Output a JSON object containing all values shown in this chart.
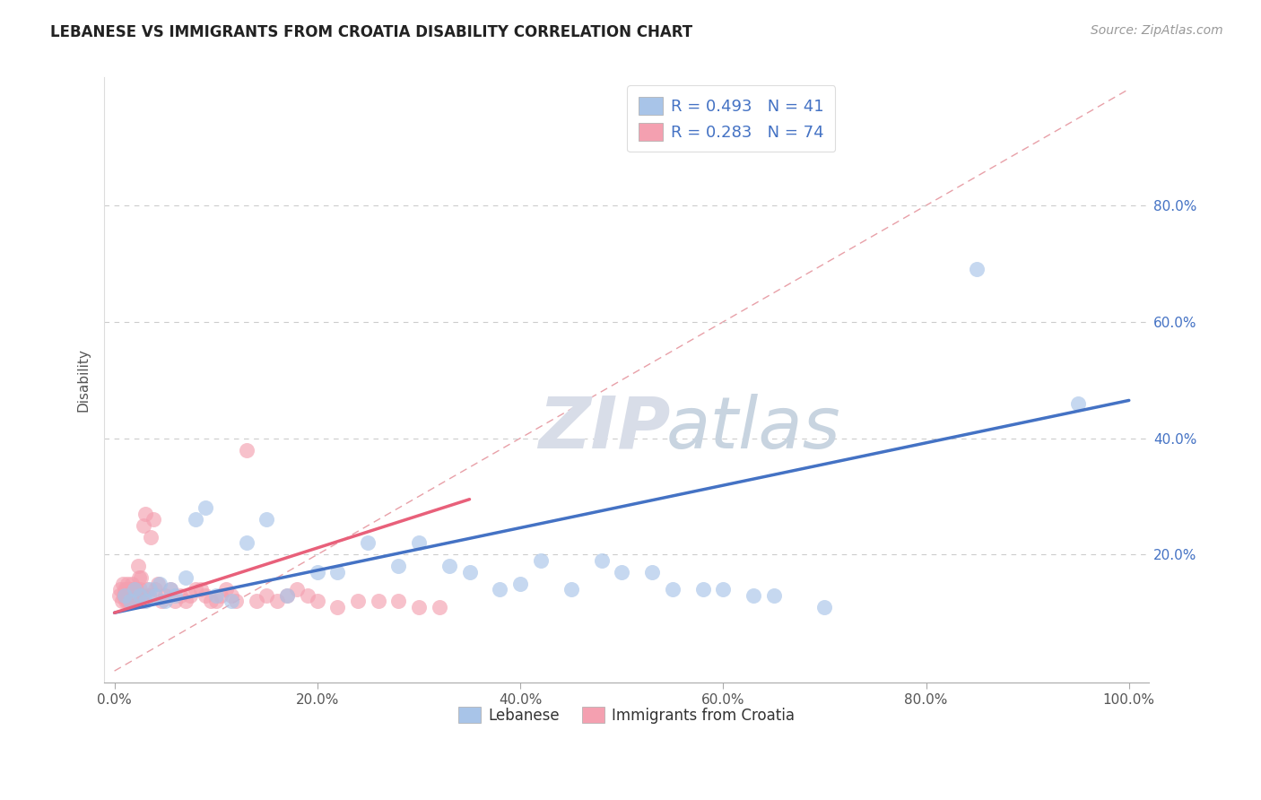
{
  "title": "LEBANESE VS IMMIGRANTS FROM CROATIA DISABILITY CORRELATION CHART",
  "source_text": "Source: ZipAtlas.com",
  "ylabel": "Disability",
  "legend_label_1": "Lebanese",
  "legend_label_2": "Immigrants from Croatia",
  "watermark_zip": "ZIP",
  "watermark_atlas": "atlas",
  "r1": 0.493,
  "n1": 41,
  "r2": 0.283,
  "n2": 74,
  "color1": "#a8c4e8",
  "color2": "#f4a0b0",
  "line_color1": "#4472c4",
  "line_color2": "#e8607a",
  "diag_color": "#e8a0a8",
  "grid_color": "#cccccc",
  "background_color": "#ffffff",
  "right_tick_color": "#4472c4",
  "leb_x": [
    0.01,
    0.015,
    0.02,
    0.025,
    0.03,
    0.035,
    0.04,
    0.045,
    0.05,
    0.055,
    0.06,
    0.07,
    0.08,
    0.09,
    0.1,
    0.115,
    0.13,
    0.15,
    0.17,
    0.2,
    0.22,
    0.25,
    0.28,
    0.3,
    0.33,
    0.35,
    0.38,
    0.4,
    0.42,
    0.45,
    0.48,
    0.5,
    0.53,
    0.55,
    0.58,
    0.6,
    0.63,
    0.65,
    0.7,
    0.85,
    0.95
  ],
  "leb_y": [
    0.13,
    0.12,
    0.14,
    0.13,
    0.12,
    0.14,
    0.13,
    0.15,
    0.12,
    0.14,
    0.13,
    0.16,
    0.26,
    0.28,
    0.13,
    0.12,
    0.22,
    0.26,
    0.13,
    0.17,
    0.17,
    0.22,
    0.18,
    0.22,
    0.18,
    0.17,
    0.14,
    0.15,
    0.19,
    0.14,
    0.19,
    0.17,
    0.17,
    0.14,
    0.14,
    0.14,
    0.13,
    0.13,
    0.11,
    0.69,
    0.46
  ],
  "cro_x": [
    0.005,
    0.006,
    0.007,
    0.008,
    0.009,
    0.01,
    0.01,
    0.011,
    0.012,
    0.012,
    0.013,
    0.013,
    0.014,
    0.014,
    0.015,
    0.015,
    0.016,
    0.016,
    0.017,
    0.017,
    0.018,
    0.018,
    0.019,
    0.019,
    0.02,
    0.02,
    0.021,
    0.021,
    0.022,
    0.022,
    0.023,
    0.024,
    0.025,
    0.026,
    0.027,
    0.028,
    0.029,
    0.03,
    0.032,
    0.034,
    0.036,
    0.038,
    0.04,
    0.043,
    0.046,
    0.05,
    0.055,
    0.06,
    0.065,
    0.07,
    0.075,
    0.08,
    0.085,
    0.09,
    0.095,
    0.1,
    0.105,
    0.11,
    0.115,
    0.12,
    0.13,
    0.14,
    0.15,
    0.16,
    0.17,
    0.18,
    0.19,
    0.2,
    0.22,
    0.24,
    0.26,
    0.28,
    0.3,
    0.32
  ],
  "cro_y": [
    0.13,
    0.14,
    0.12,
    0.15,
    0.13,
    0.14,
    0.13,
    0.12,
    0.14,
    0.13,
    0.15,
    0.12,
    0.13,
    0.14,
    0.13,
    0.12,
    0.14,
    0.13,
    0.15,
    0.12,
    0.14,
    0.13,
    0.12,
    0.14,
    0.13,
    0.12,
    0.14,
    0.13,
    0.12,
    0.14,
    0.18,
    0.16,
    0.14,
    0.16,
    0.12,
    0.13,
    0.25,
    0.27,
    0.14,
    0.13,
    0.23,
    0.26,
    0.14,
    0.15,
    0.12,
    0.13,
    0.14,
    0.12,
    0.13,
    0.12,
    0.13,
    0.14,
    0.14,
    0.13,
    0.12,
    0.12,
    0.13,
    0.14,
    0.13,
    0.12,
    0.38,
    0.12,
    0.13,
    0.12,
    0.13,
    0.14,
    0.13,
    0.12,
    0.11,
    0.12,
    0.12,
    0.12,
    0.11,
    0.11
  ],
  "leb_line_x0": 0.0,
  "leb_line_y0": 0.1,
  "leb_line_x1": 1.0,
  "leb_line_y1": 0.465,
  "cro_line_x0": 0.0,
  "cro_line_y0": 0.1,
  "cro_line_x1": 0.35,
  "cro_line_y1": 0.295,
  "xlim_lo": -0.01,
  "xlim_hi": 1.02,
  "ylim_lo": -0.02,
  "ylim_hi": 1.02,
  "xticks": [
    0.0,
    0.2,
    0.4,
    0.6,
    0.8,
    1.0
  ],
  "yticks_right": [
    0.2,
    0.4,
    0.6,
    0.8
  ],
  "ytick_labels": [
    "20.0%",
    "40.0%",
    "60.0%",
    "80.0%"
  ],
  "xtick_labels": [
    "0.0%",
    "20.0%",
    "40.0%",
    "60.0%",
    "80.0%",
    "100.0%"
  ]
}
